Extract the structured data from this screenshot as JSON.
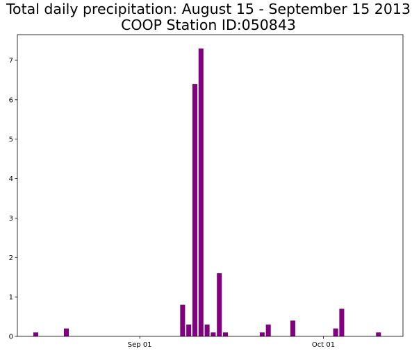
{
  "chart_data": {
    "type": "bar",
    "title": "Total daily precipitation: August 15 - September 15 2013",
    "subtitle": "COOP Station ID:050843",
    "xlabel": "",
    "ylabel": "",
    "x_tick_labels": [
      {
        "date": "2013-09-01",
        "label": "Sep 01"
      },
      {
        "date": "2013-10-01",
        "label": "Oct 01"
      }
    ],
    "x_range": [
      "2013-08-12",
      "2013-10-14"
    ],
    "ylim": [
      0,
      7.65
    ],
    "y_ticks": [
      0,
      1,
      2,
      3,
      4,
      5,
      6,
      7
    ],
    "grid": false,
    "bar_color": "#800080",
    "series": [
      {
        "dates": [
          "2013-08-15",
          "2013-08-20",
          "2013-09-08",
          "2013-09-09",
          "2013-09-10",
          "2013-09-11",
          "2013-09-12",
          "2013-09-13",
          "2013-09-14",
          "2013-09-15",
          "2013-09-21",
          "2013-09-22",
          "2013-09-26",
          "2013-10-03",
          "2013-10-04",
          "2013-10-10"
        ],
        "values": [
          0.1,
          0.2,
          0.8,
          0.3,
          6.4,
          7.3,
          0.3,
          0.1,
          1.6,
          0.1,
          0.1,
          0.3,
          0.4,
          0.2,
          0.7,
          0.1
        ]
      }
    ]
  }
}
